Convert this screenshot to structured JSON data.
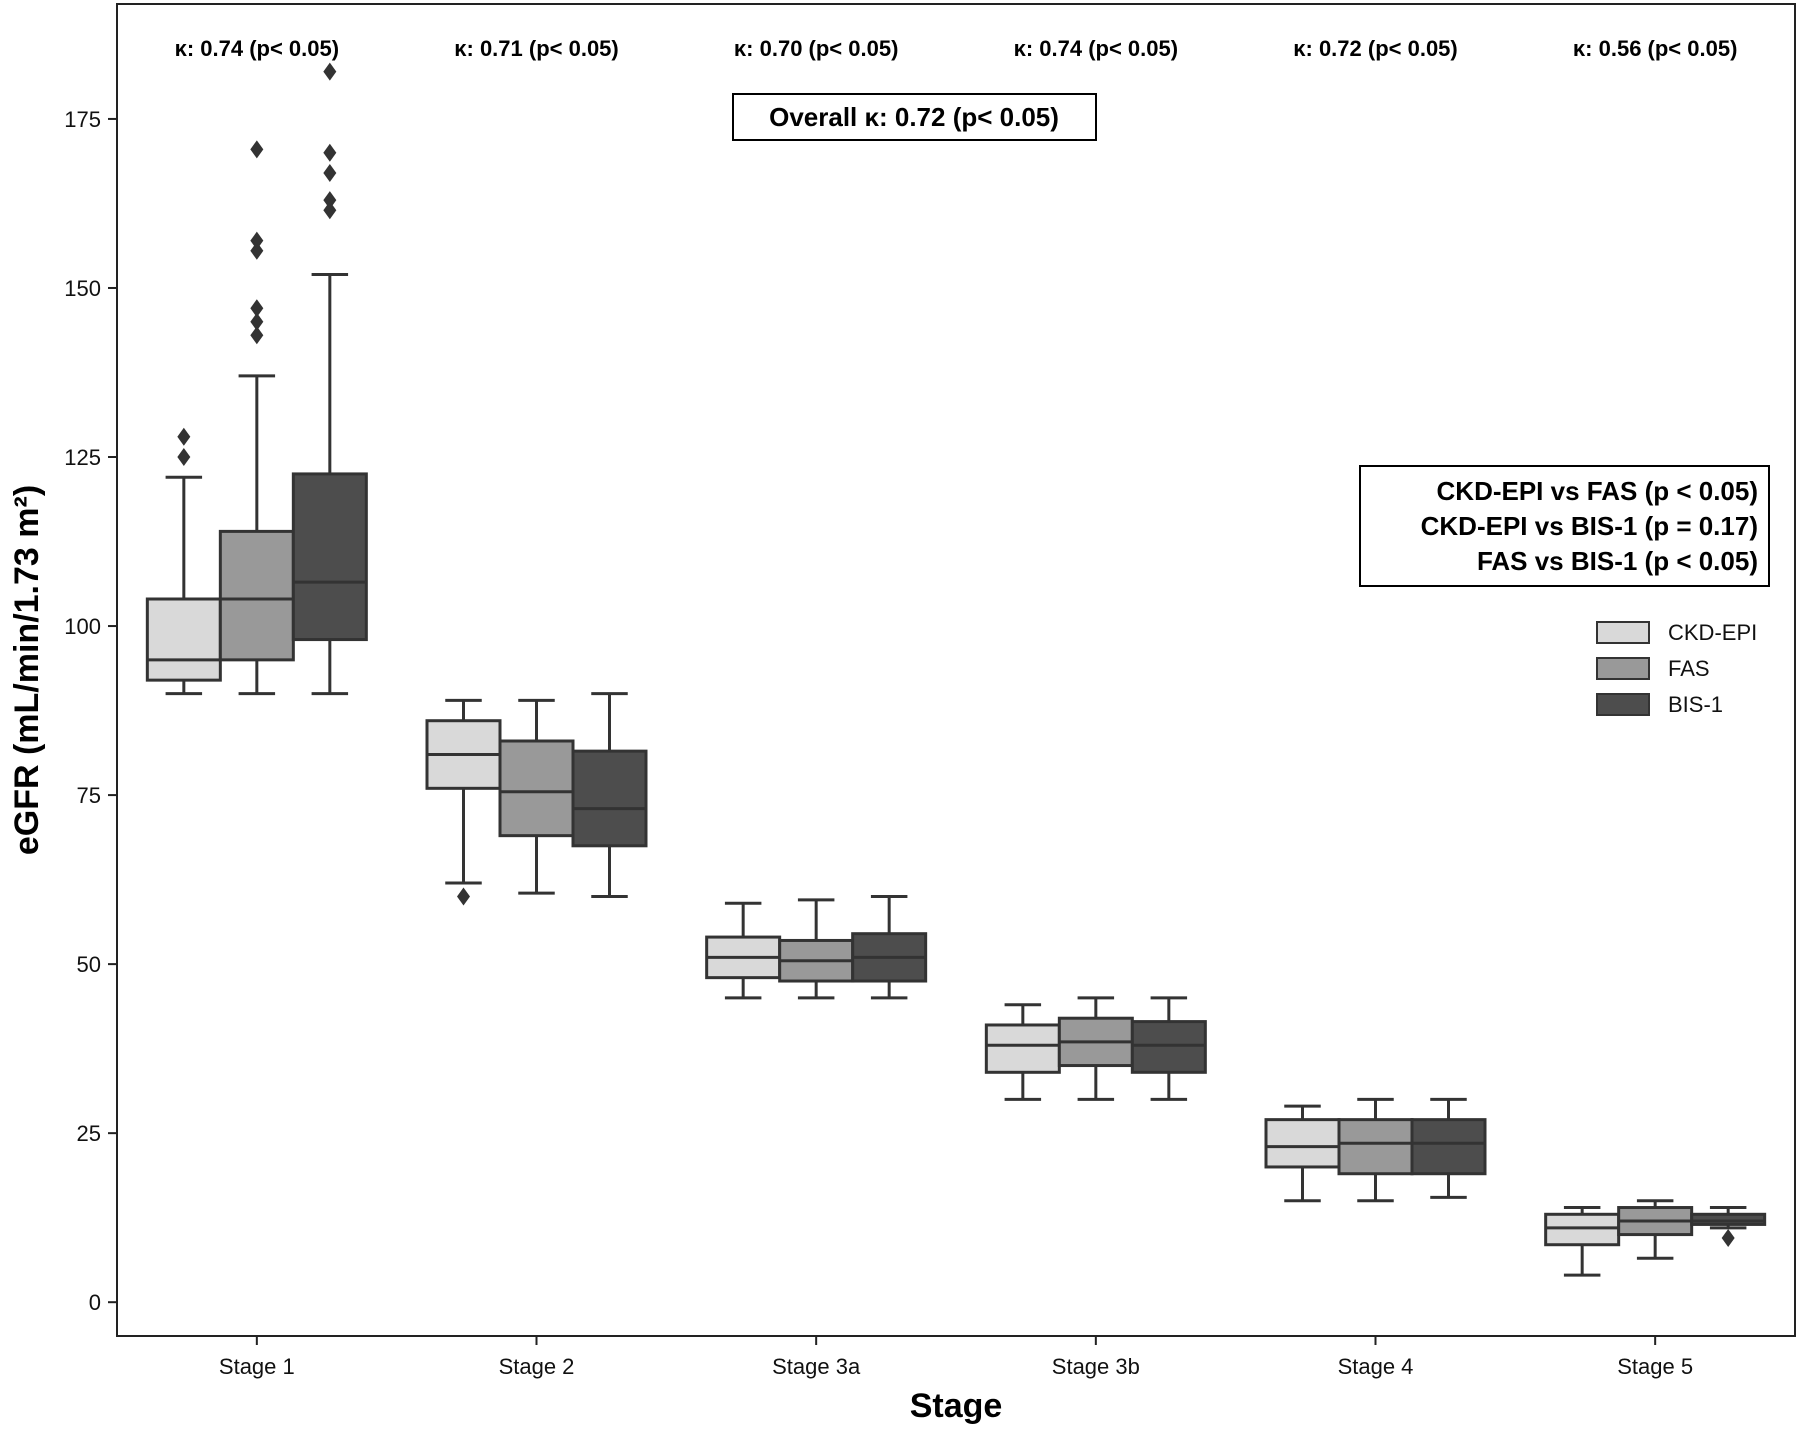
{
  "chart_data": {
    "type": "box",
    "xlabel": "Stage",
    "ylabel": "eGFR (mL/min/1.73 m²)",
    "ylim": [
      -5,
      192
    ],
    "yticks": [
      0,
      25,
      50,
      75,
      100,
      125,
      150,
      175
    ],
    "categories": [
      "Stage 1",
      "Stage 2",
      "Stage 3a",
      "Stage 3b",
      "Stage 4",
      "Stage 5"
    ],
    "kappa_labels": [
      "κ: 0.74 (p< 0.05)",
      "κ: 0.71 (p< 0.05)",
      "κ: 0.70 (p< 0.05)",
      "κ: 0.74 (p< 0.05)",
      "κ: 0.72 (p< 0.05)",
      "κ: 0.56 (p< 0.05)"
    ],
    "overall_kappa": "Overall κ: 0.72 (p< 0.05)",
    "comparisons": [
      "CKD-EPI vs FAS (p < 0.05)",
      "CKD-EPI vs BIS-1 (p = 0.17)",
      "FAS vs BIS-1 (p < 0.05)"
    ],
    "legend_position": "right",
    "series": [
      {
        "name": "CKD-EPI",
        "color": "#d9d9d9",
        "boxes": [
          {
            "whislo": 90,
            "q1": 92,
            "med": 95,
            "q3": 104,
            "whishi": 122,
            "fliers": [
              125,
              128
            ]
          },
          {
            "whislo": 62,
            "q1": 76,
            "med": 81,
            "q3": 86,
            "whishi": 89,
            "fliers": [
              60
            ]
          },
          {
            "whislo": 45,
            "q1": 48,
            "med": 51,
            "q3": 54,
            "whishi": 59,
            "fliers": []
          },
          {
            "whislo": 30,
            "q1": 34,
            "med": 38,
            "q3": 41,
            "whishi": 44,
            "fliers": []
          },
          {
            "whislo": 15,
            "q1": 20,
            "med": 23,
            "q3": 27,
            "whishi": 29,
            "fliers": []
          },
          {
            "whislo": 4,
            "q1": 8.5,
            "med": 11,
            "q3": 13,
            "whishi": 14,
            "fliers": []
          }
        ]
      },
      {
        "name": "FAS",
        "color": "#999999",
        "boxes": [
          {
            "whislo": 90,
            "q1": 95,
            "med": 104,
            "q3": 114,
            "whishi": 137,
            "fliers": [
              143,
              145,
              147,
              155.5,
              157,
              170.5
            ]
          },
          {
            "whislo": 60.5,
            "q1": 69,
            "med": 75.5,
            "q3": 83,
            "whishi": 89,
            "fliers": []
          },
          {
            "whislo": 45,
            "q1": 47.5,
            "med": 50.5,
            "q3": 53.5,
            "whishi": 59.5,
            "fliers": []
          },
          {
            "whislo": 30,
            "q1": 35,
            "med": 38.5,
            "q3": 42,
            "whishi": 45,
            "fliers": []
          },
          {
            "whislo": 15,
            "q1": 19,
            "med": 23.5,
            "q3": 27,
            "whishi": 30,
            "fliers": []
          },
          {
            "whislo": 6.5,
            "q1": 10,
            "med": 12,
            "q3": 14,
            "whishi": 15,
            "fliers": []
          }
        ]
      },
      {
        "name": "BIS-1",
        "color": "#4d4d4d",
        "boxes": [
          {
            "whislo": 90,
            "q1": 98,
            "med": 106.5,
            "q3": 122.5,
            "whishi": 152,
            "fliers": [
              161.5,
              163,
              167,
              170,
              182
            ]
          },
          {
            "whislo": 60,
            "q1": 67.5,
            "med": 73,
            "q3": 81.5,
            "whishi": 90,
            "fliers": []
          },
          {
            "whislo": 45,
            "q1": 47.5,
            "med": 51,
            "q3": 54.5,
            "whishi": 60,
            "fliers": []
          },
          {
            "whislo": 30,
            "q1": 34,
            "med": 38,
            "q3": 41.5,
            "whishi": 45,
            "fliers": []
          },
          {
            "whislo": 15.5,
            "q1": 19,
            "med": 23.5,
            "q3": 27,
            "whishi": 30,
            "fliers": []
          },
          {
            "whislo": 11,
            "q1": 11.5,
            "med": 12,
            "q3": 13,
            "whishi": 14,
            "fliers": [
              9.5
            ]
          }
        ]
      }
    ]
  }
}
